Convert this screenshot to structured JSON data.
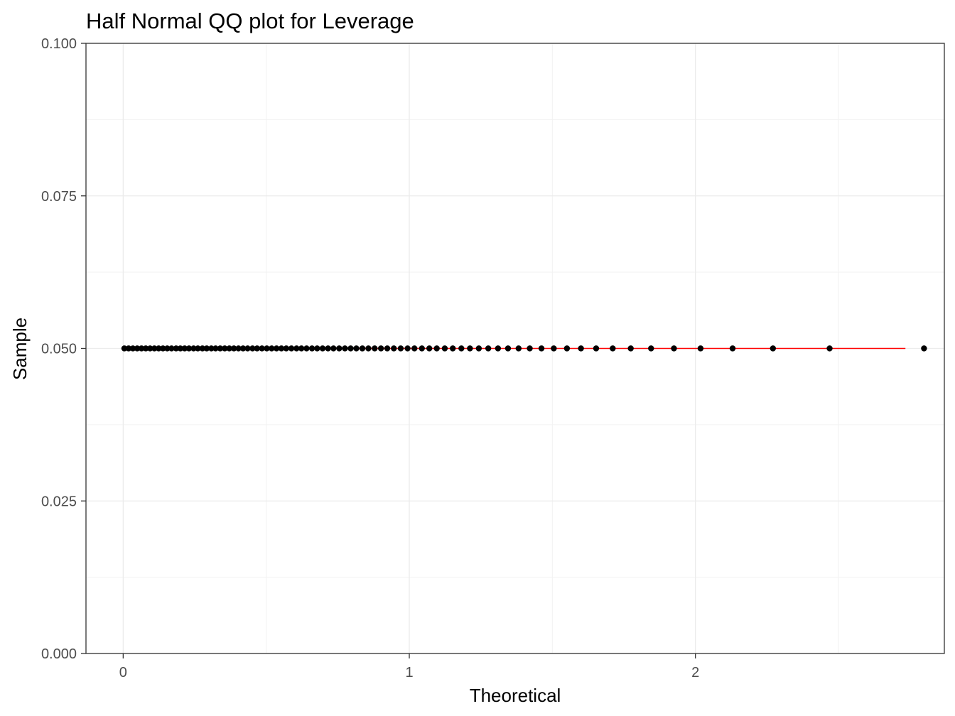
{
  "chart_data": {
    "type": "scatter",
    "title": "Half Normal QQ plot for Leverage",
    "xlabel": "Theoretical",
    "ylabel": "Sample",
    "xlim": [
      -0.13,
      2.87
    ],
    "ylim": [
      0,
      0.1
    ],
    "x_ticks": [
      0,
      1,
      2
    ],
    "x_tick_labels": [
      "0",
      "1",
      "2"
    ],
    "y_ticks": [
      0,
      0.025,
      0.05,
      0.075,
      0.1
    ],
    "y_tick_labels": [
      "0.000",
      "0.025",
      "0.050",
      "0.075",
      "0.100"
    ],
    "grid": true,
    "legend": "none",
    "point_color": "#000000",
    "line_color": "#ff0000",
    "series": [
      {
        "kind": "points",
        "x": [
          0.004,
          0.019,
          0.034,
          0.049,
          0.064,
          0.079,
          0.094,
          0.109,
          0.124,
          0.139,
          0.154,
          0.169,
          0.185,
          0.2,
          0.215,
          0.23,
          0.246,
          0.261,
          0.277,
          0.292,
          0.308,
          0.323,
          0.339,
          0.355,
          0.371,
          0.387,
          0.403,
          0.419,
          0.435,
          0.452,
          0.468,
          0.485,
          0.502,
          0.519,
          0.536,
          0.553,
          0.57,
          0.588,
          0.606,
          0.623,
          0.641,
          0.66,
          0.678,
          0.697,
          0.716,
          0.735,
          0.755,
          0.775,
          0.795,
          0.815,
          0.836,
          0.857,
          0.879,
          0.901,
          0.923,
          0.946,
          0.97,
          0.994,
          1.018,
          1.044,
          1.07,
          1.096,
          1.124,
          1.152,
          1.182,
          1.212,
          1.243,
          1.276,
          1.31,
          1.345,
          1.382,
          1.421,
          1.462,
          1.505,
          1.551,
          1.6,
          1.653,
          1.711,
          1.774,
          1.845,
          1.925,
          2.018,
          2.13,
          2.271,
          2.469,
          2.799
        ],
        "y_value": 0.05
      },
      {
        "kind": "reference-line",
        "x": [
          0.004,
          2.734
        ],
        "y": [
          0.05,
          0.05
        ]
      }
    ]
  }
}
